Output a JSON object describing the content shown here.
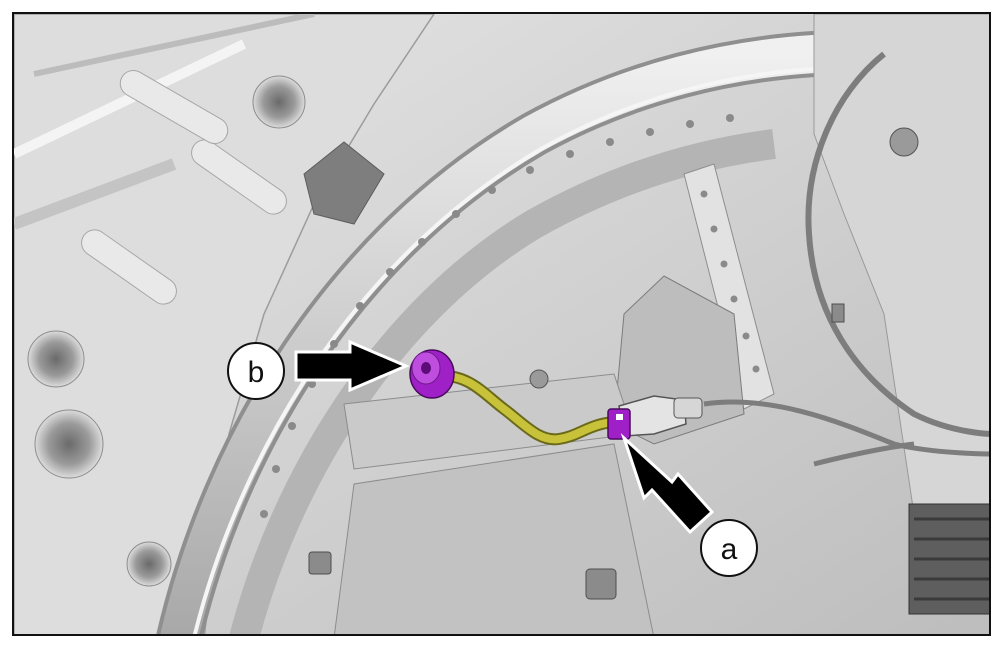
{
  "figure": {
    "callouts": [
      {
        "id": "a",
        "label": "a"
      },
      {
        "id": "b",
        "label": "b"
      }
    ]
  },
  "colors": {
    "background_panel": "#cfcfcf",
    "sheet_metal_light": "#e4e4e4",
    "sheet_metal_dark": "#a9a9a9",
    "harness_yellow": "#c8c23a",
    "highlight_purple": "#a020c8",
    "arrow_black": "#000000",
    "border": "#111111"
  },
  "icons": [
    "arrow-icon",
    "callout-circle-icon"
  ]
}
